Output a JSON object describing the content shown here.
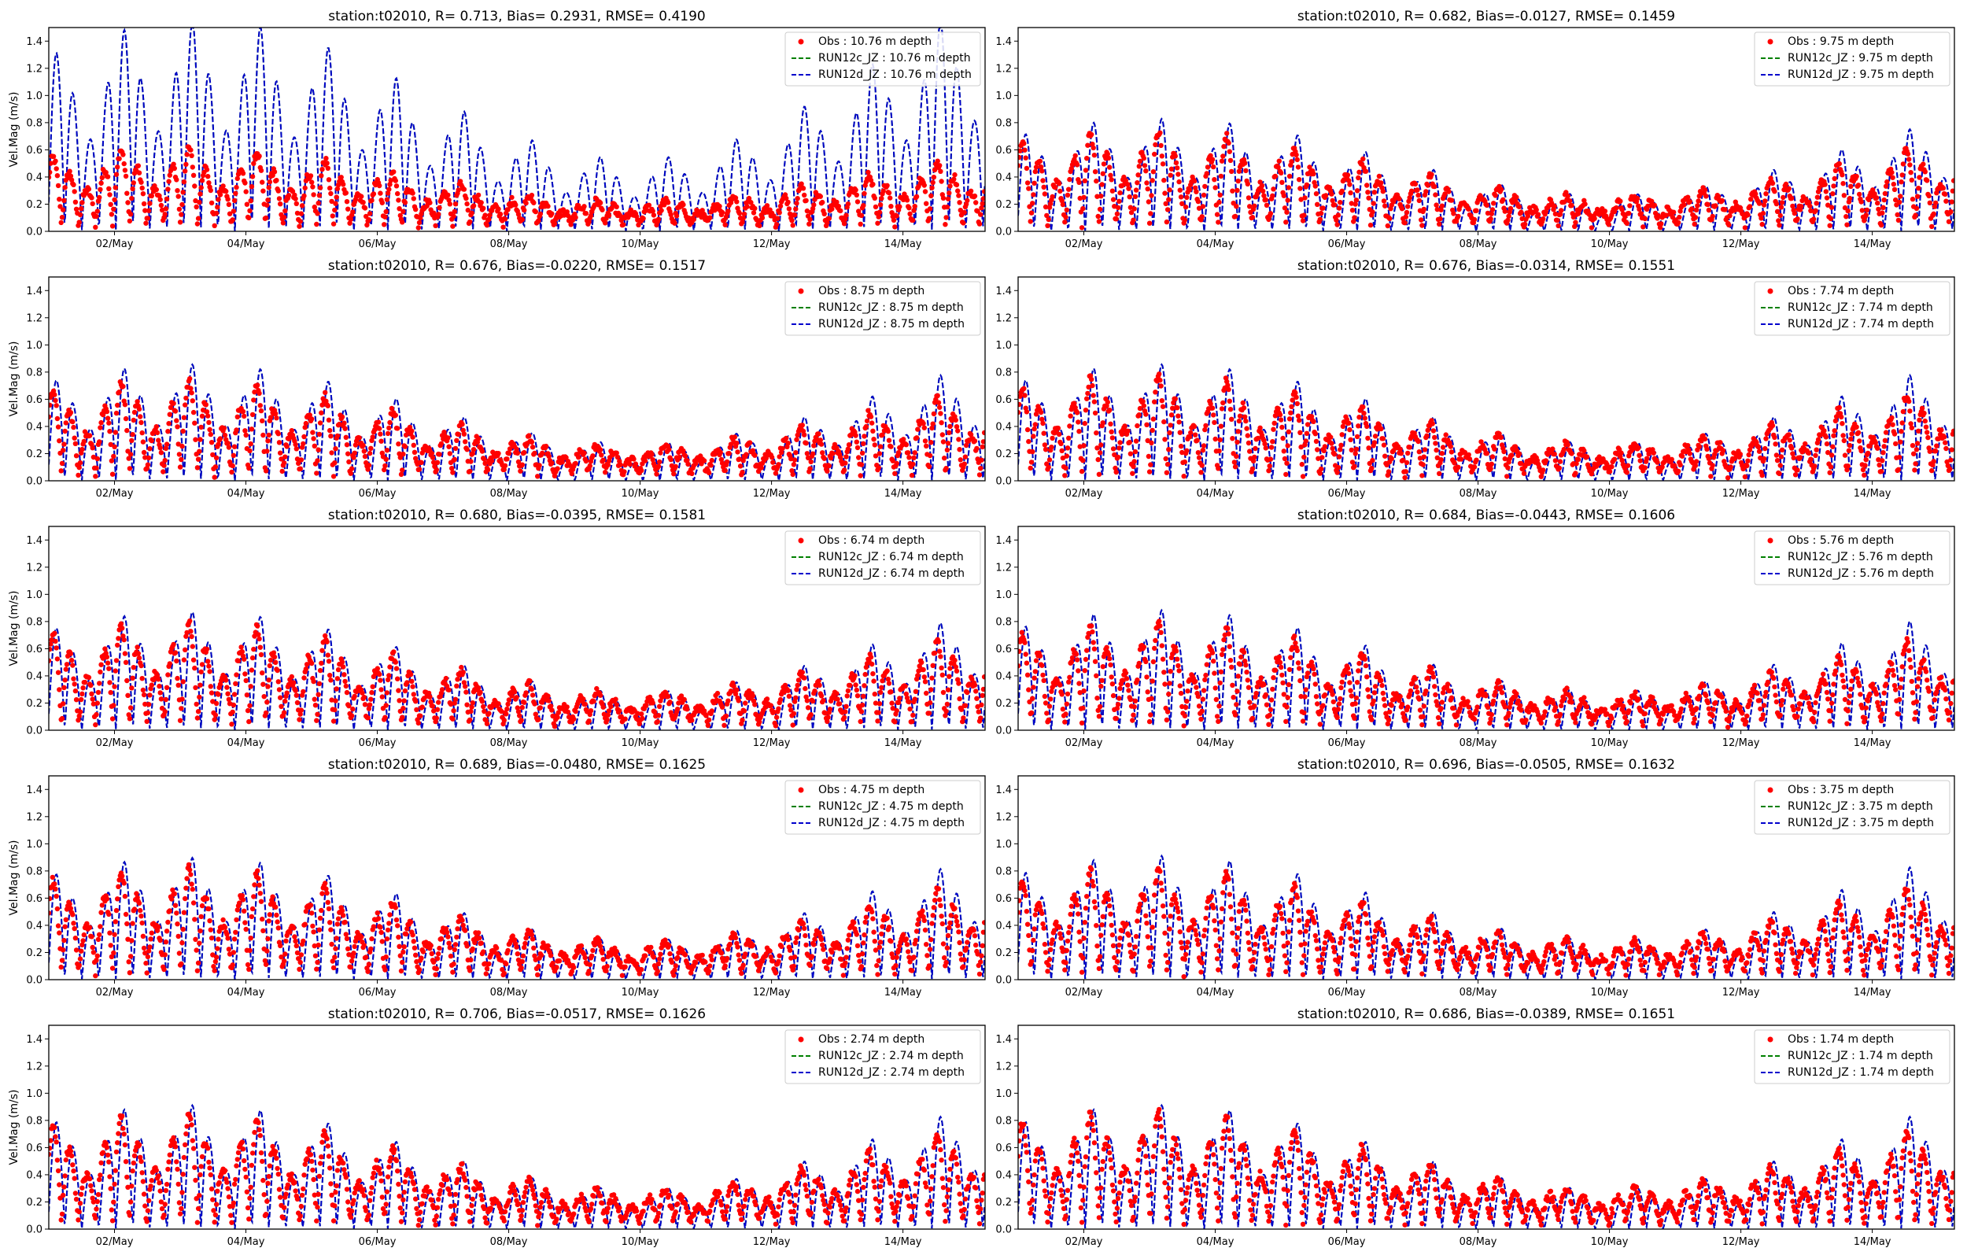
{
  "figure": {
    "station": "t02010",
    "colors": {
      "obs": "#ff0000",
      "run12c": "#008000",
      "run12d": "#0000cc",
      "axis": "#000000"
    }
  },
  "chart_data": [
    {
      "type": "line",
      "title": "station:t02010, R= 0.713, Bias= 0.2931, RMSE= 0.4190",
      "xlabel": "",
      "ylabel": "Vel.Mag (m/s)",
      "ylim": [
        0,
        1.5
      ],
      "xlim_days": [
        1.0,
        15.25
      ],
      "x_ticks": [
        "02/May",
        "04/May",
        "06/May",
        "08/May",
        "10/May",
        "12/May",
        "14/May"
      ],
      "y_ticks": [
        "0.0",
        "0.2",
        "0.4",
        "0.6",
        "0.8",
        "1.0",
        "1.2",
        "1.4"
      ],
      "legend_position": "top-right",
      "legend": [
        "Obs : 10.76 m depth",
        "RUN12c_JZ : 10.76 m depth",
        "RUN12d_JZ : 10.76 m depth"
      ],
      "series": [
        {
          "name": "Obs",
          "style": "markers",
          "obs_ampl": 0.45,
          "obs_base": 0.05
        },
        {
          "name": "RUN12c_JZ",
          "style": "dashed",
          "model_ampl": 1.1,
          "model_trend": 0.3,
          "bias_note": "large overestimate"
        },
        {
          "name": "RUN12d_JZ",
          "style": "dashed"
        }
      ]
    },
    {
      "type": "line",
      "title": "station:t02010, R= 0.682, Bias=-0.0127, RMSE= 0.1459",
      "xlabel": "",
      "ylabel": "",
      "ylim": [
        0,
        1.5
      ],
      "xlim_days": [
        1.0,
        15.25
      ],
      "x_ticks": [
        "02/May",
        "04/May",
        "06/May",
        "08/May",
        "10/May",
        "12/May",
        "14/May"
      ],
      "y_ticks": [
        "0.0",
        "0.2",
        "0.4",
        "0.6",
        "0.8",
        "1.0",
        "1.2",
        "1.4"
      ],
      "legend_position": "top-right",
      "legend": [
        "Obs : 9.75 m depth",
        "RUN12c_JZ : 9.75 m depth",
        "RUN12d_JZ : 9.75 m depth"
      ],
      "series": [
        {
          "name": "Obs",
          "style": "markers",
          "obs_ampl": 0.55,
          "obs_base": 0.05
        },
        {
          "name": "RUN12c_JZ",
          "style": "dashed",
          "model_ampl": 0.6,
          "model_trend": 0.15
        },
        {
          "name": "RUN12d_JZ",
          "style": "dashed"
        }
      ]
    },
    {
      "type": "line",
      "title": "station:t02010, R= 0.676, Bias=-0.0220, RMSE= 0.1517",
      "xlabel": "",
      "ylabel": "Vel.Mag (m/s)",
      "ylim": [
        0,
        1.5
      ],
      "xlim_days": [
        1.0,
        15.25
      ],
      "x_ticks": [
        "02/May",
        "04/May",
        "06/May",
        "08/May",
        "10/May",
        "12/May",
        "14/May"
      ],
      "y_ticks": [
        "0.0",
        "0.2",
        "0.4",
        "0.6",
        "0.8",
        "1.0",
        "1.2",
        "1.4"
      ],
      "legend_position": "top-right",
      "legend": [
        "Obs : 8.75 m depth",
        "RUN12c_JZ : 8.75 m depth",
        "RUN12d_JZ : 8.75 m depth"
      ],
      "series": [
        {
          "name": "Obs",
          "style": "markers",
          "obs_ampl": 0.55,
          "obs_base": 0.05
        },
        {
          "name": "RUN12c_JZ",
          "style": "dashed",
          "model_ampl": 0.62,
          "model_trend": 0.15
        },
        {
          "name": "RUN12d_JZ",
          "style": "dashed"
        }
      ]
    },
    {
      "type": "line",
      "title": "station:t02010, R= 0.676, Bias=-0.0314, RMSE= 0.1551",
      "xlabel": "",
      "ylabel": "",
      "ylim": [
        0,
        1.5
      ],
      "xlim_days": [
        1.0,
        15.25
      ],
      "x_ticks": [
        "02/May",
        "04/May",
        "06/May",
        "08/May",
        "10/May",
        "12/May",
        "14/May"
      ],
      "y_ticks": [
        "0.0",
        "0.2",
        "0.4",
        "0.6",
        "0.8",
        "1.0",
        "1.2",
        "1.4"
      ],
      "legend_position": "top-right",
      "legend": [
        "Obs : 7.74 m depth",
        "RUN12c_JZ : 7.74 m depth",
        "RUN12d_JZ : 7.74 m depth"
      ],
      "series": [
        {
          "name": "Obs",
          "style": "markers",
          "obs_ampl": 0.58,
          "obs_base": 0.05
        },
        {
          "name": "RUN12c_JZ",
          "style": "dashed",
          "model_ampl": 0.62,
          "model_trend": 0.15
        },
        {
          "name": "RUN12d_JZ",
          "style": "dashed"
        }
      ]
    },
    {
      "type": "line",
      "title": "station:t02010, R= 0.680, Bias=-0.0395, RMSE= 0.1581",
      "xlabel": "",
      "ylabel": "Vel.Mag (m/s)",
      "ylim": [
        0,
        1.5
      ],
      "xlim_days": [
        1.0,
        15.25
      ],
      "x_ticks": [
        "02/May",
        "04/May",
        "06/May",
        "08/May",
        "10/May",
        "12/May",
        "14/May"
      ],
      "y_ticks": [
        "0.0",
        "0.2",
        "0.4",
        "0.6",
        "0.8",
        "1.0",
        "1.2",
        "1.4"
      ],
      "legend_position": "top-right",
      "legend": [
        "Obs : 6.74 m depth",
        "RUN12c_JZ : 6.74 m depth",
        "RUN12d_JZ : 6.74 m depth"
      ],
      "series": [
        {
          "name": "Obs",
          "style": "markers",
          "obs_ampl": 0.6,
          "obs_base": 0.05
        },
        {
          "name": "RUN12c_JZ",
          "style": "dashed",
          "model_ampl": 0.63,
          "model_trend": 0.15
        },
        {
          "name": "RUN12d_JZ",
          "style": "dashed"
        }
      ]
    },
    {
      "type": "line",
      "title": "station:t02010, R= 0.684, Bias=-0.0443, RMSE= 0.1606",
      "xlabel": "",
      "ylabel": "",
      "ylim": [
        0,
        1.5
      ],
      "xlim_days": [
        1.0,
        15.25
      ],
      "x_ticks": [
        "02/May",
        "04/May",
        "06/May",
        "08/May",
        "10/May",
        "12/May",
        "14/May"
      ],
      "y_ticks": [
        "0.0",
        "0.2",
        "0.4",
        "0.6",
        "0.8",
        "1.0",
        "1.2",
        "1.4"
      ],
      "legend_position": "top-right",
      "legend": [
        "Obs : 5.76 m depth",
        "RUN12c_JZ : 5.76 m depth",
        "RUN12d_JZ : 5.76 m depth"
      ],
      "series": [
        {
          "name": "Obs",
          "style": "markers",
          "obs_ampl": 0.6,
          "obs_base": 0.05
        },
        {
          "name": "RUN12c_JZ",
          "style": "dashed",
          "model_ampl": 0.64,
          "model_trend": 0.15
        },
        {
          "name": "RUN12d_JZ",
          "style": "dashed"
        }
      ]
    },
    {
      "type": "line",
      "title": "station:t02010, R= 0.689, Bias=-0.0480, RMSE= 0.1625",
      "xlabel": "",
      "ylabel": "Vel.Mag (m/s)",
      "ylim": [
        0,
        1.5
      ],
      "xlim_days": [
        1.0,
        15.25
      ],
      "x_ticks": [
        "02/May",
        "04/May",
        "06/May",
        "08/May",
        "10/May",
        "12/May",
        "14/May"
      ],
      "y_ticks": [
        "0.0",
        "0.2",
        "0.4",
        "0.6",
        "0.8",
        "1.0",
        "1.2",
        "1.4"
      ],
      "legend_position": "top-right",
      "legend": [
        "Obs : 4.75 m depth",
        "RUN12c_JZ : 4.75 m depth",
        "RUN12d_JZ : 4.75 m depth"
      ],
      "series": [
        {
          "name": "Obs",
          "style": "markers",
          "obs_ampl": 0.62,
          "obs_base": 0.05
        },
        {
          "name": "RUN12c_JZ",
          "style": "dashed",
          "model_ampl": 0.65,
          "model_trend": 0.15
        },
        {
          "name": "RUN12d_JZ",
          "style": "dashed"
        }
      ]
    },
    {
      "type": "line",
      "title": "station:t02010, R= 0.696, Bias=-0.0505, RMSE= 0.1632",
      "xlabel": "",
      "ylabel": "",
      "ylim": [
        0,
        1.5
      ],
      "xlim_days": [
        1.0,
        15.25
      ],
      "x_ticks": [
        "02/May",
        "04/May",
        "06/May",
        "08/May",
        "10/May",
        "12/May",
        "14/May"
      ],
      "y_ticks": [
        "0.0",
        "0.2",
        "0.4",
        "0.6",
        "0.8",
        "1.0",
        "1.2",
        "1.4"
      ],
      "legend_position": "top-right",
      "legend": [
        "Obs : 3.75 m depth",
        "RUN12c_JZ : 3.75 m depth",
        "RUN12d_JZ : 3.75 m depth"
      ],
      "series": [
        {
          "name": "Obs",
          "style": "markers",
          "obs_ampl": 0.62,
          "obs_base": 0.05
        },
        {
          "name": "RUN12c_JZ",
          "style": "dashed",
          "model_ampl": 0.66,
          "model_trend": 0.15
        },
        {
          "name": "RUN12d_JZ",
          "style": "dashed"
        }
      ]
    },
    {
      "type": "line",
      "title": "station:t02010, R= 0.706, Bias=-0.0517, RMSE= 0.1626",
      "xlabel": "",
      "ylabel": "Vel.Mag (m/s)",
      "ylim": [
        0,
        1.5
      ],
      "xlim_days": [
        1.0,
        15.25
      ],
      "x_ticks": [
        "02/May",
        "04/May",
        "06/May",
        "08/May",
        "10/May",
        "12/May",
        "14/May"
      ],
      "y_ticks": [
        "0.0",
        "0.2",
        "0.4",
        "0.6",
        "0.8",
        "1.0",
        "1.2",
        "1.4"
      ],
      "legend_position": "top-right",
      "legend": [
        "Obs : 2.74 m depth",
        "RUN12c_JZ : 2.74 m depth",
        "RUN12d_JZ : 2.74 m depth"
      ],
      "series": [
        {
          "name": "Obs",
          "style": "markers",
          "obs_ampl": 0.64,
          "obs_base": 0.05
        },
        {
          "name": "RUN12c_JZ",
          "style": "dashed",
          "model_ampl": 0.66,
          "model_trend": 0.15
        },
        {
          "name": "RUN12d_JZ",
          "style": "dashed"
        }
      ]
    },
    {
      "type": "line",
      "title": "station:t02010, R= 0.686, Bias=-0.0389, RMSE= 0.1651",
      "xlabel": "",
      "ylabel": "",
      "ylim": [
        0,
        1.5
      ],
      "xlim_days": [
        1.0,
        15.25
      ],
      "x_ticks": [
        "02/May",
        "04/May",
        "06/May",
        "08/May",
        "10/May",
        "12/May",
        "14/May"
      ],
      "y_ticks": [
        "0.0",
        "0.2",
        "0.4",
        "0.6",
        "0.8",
        "1.0",
        "1.2",
        "1.4"
      ],
      "legend_position": "top-right",
      "legend": [
        "Obs : 1.74 m depth",
        "RUN12c_JZ : 1.74 m depth",
        "RUN12d_JZ : 1.74 m depth"
      ],
      "series": [
        {
          "name": "Obs",
          "style": "markers",
          "obs_ampl": 0.66,
          "obs_base": 0.05
        },
        {
          "name": "RUN12c_JZ",
          "style": "dashed",
          "model_ampl": 0.66,
          "model_trend": 0.15
        },
        {
          "name": "RUN12d_JZ",
          "style": "dashed"
        }
      ]
    }
  ]
}
